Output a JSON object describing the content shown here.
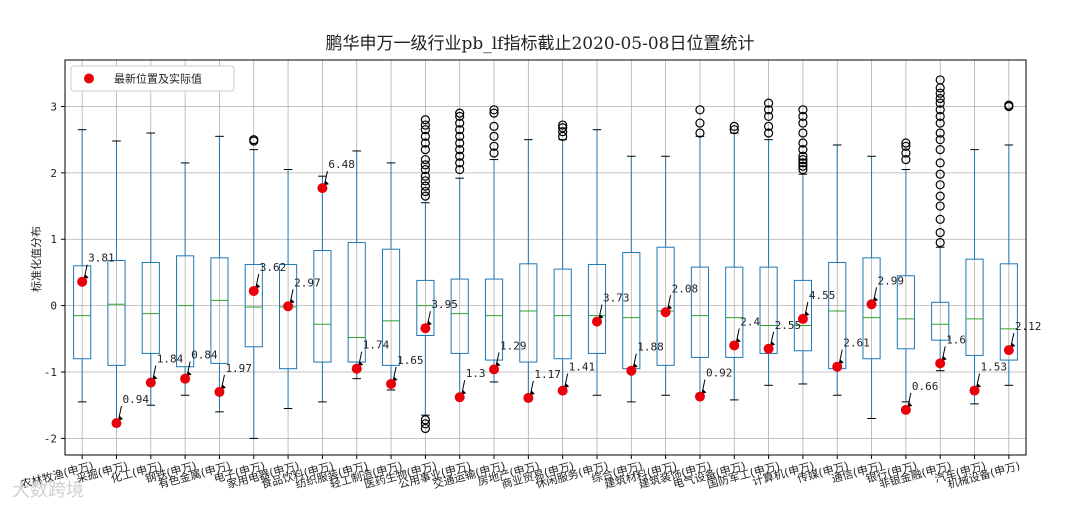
{
  "chart_data": {
    "type": "box",
    "title": "鹏华申万一级行业pb_lf指标截止2020-05-08日位置统计",
    "xlabel": "",
    "ylabel": "标准化值分布",
    "ylim": [
      -2.25,
      3.7
    ],
    "yticks": [
      -2,
      -1,
      0,
      1,
      2,
      3
    ],
    "grid": true,
    "legend": {
      "label": "最新位置及实际值",
      "placement": "top-left",
      "marker_color": "#e8000b"
    },
    "colors": {
      "box": "#1f77b4",
      "median": "#2ca02c",
      "latest": "#e8000b",
      "grid": "#b0b0b0"
    },
    "categories": [
      "农林牧渔(申万)",
      "采掘(申万)",
      "化工(申万)",
      "钢铁(申万)",
      "有色金属(申万)",
      "电子(申万)",
      "家用电器(申万)",
      "食品饮料(申万)",
      "纺织服装(申万)",
      "轻工制造(申万)",
      "医药生物(申万)",
      "公用事业(申万)",
      "交通运输(申万)",
      "房地产(申万)",
      "商业贸易(申万)",
      "休闲服务(申万)",
      "综合(申万)",
      "建筑材料(申万)",
      "建筑装饰(申万)",
      "电气设备(申万)",
      "国防军工(申万)",
      "计算机(申万)",
      "传媒(申万)",
      "通信(申万)",
      "银行(申万)",
      "非银金融(申万)",
      "汽车(申万)",
      "机械设备(申万)"
    ],
    "boxes": [
      {
        "low": -1.45,
        "q1": -0.8,
        "median": -0.15,
        "q3": 0.6,
        "high": 2.65,
        "outliers": []
      },
      {
        "low": -1.75,
        "q1": -0.9,
        "median": 0.02,
        "q3": 0.68,
        "high": 2.48,
        "outliers": []
      },
      {
        "low": -1.5,
        "q1": -0.72,
        "median": -0.12,
        "q3": 0.65,
        "high": 2.6,
        "outliers": []
      },
      {
        "low": -1.35,
        "q1": -0.92,
        "median": 0.0,
        "q3": 0.75,
        "high": 2.15,
        "outliers": []
      },
      {
        "low": -1.6,
        "q1": -0.87,
        "median": 0.08,
        "q3": 0.72,
        "high": 2.55,
        "outliers": []
      },
      {
        "low": -2.0,
        "q1": -0.62,
        "median": -0.02,
        "q3": 0.62,
        "high": 2.35,
        "outliers": [
          2.5,
          2.48
        ]
      },
      {
        "low": -1.55,
        "q1": -0.95,
        "median": -0.02,
        "q3": 0.62,
        "high": 2.05,
        "outliers": []
      },
      {
        "low": -1.45,
        "q1": -0.85,
        "median": -0.28,
        "q3": 0.83,
        "high": 1.95,
        "outliers": []
      },
      {
        "low": -1.1,
        "q1": -0.85,
        "median": -0.48,
        "q3": 0.95,
        "high": 2.33,
        "outliers": []
      },
      {
        "low": -1.27,
        "q1": -0.9,
        "median": -0.23,
        "q3": 0.85,
        "high": 2.15,
        "outliers": []
      },
      {
        "low": -1.65,
        "q1": -0.45,
        "median": 0.0,
        "q3": 0.38,
        "high": 1.55,
        "outliers": [
          1.65,
          1.72,
          1.8,
          1.88,
          1.95,
          2.05,
          2.12,
          2.2,
          2.35,
          2.45,
          2.55,
          2.65,
          2.72,
          2.8,
          -1.72,
          -1.78,
          -1.85
        ]
      },
      {
        "low": -1.38,
        "q1": -0.72,
        "median": -0.12,
        "q3": 0.4,
        "high": 1.92,
        "outliers": [
          2.05,
          2.15,
          2.25,
          2.35,
          2.45,
          2.55,
          2.65,
          2.75,
          2.85,
          2.9
        ]
      },
      {
        "low": -1.15,
        "q1": -0.82,
        "median": -0.15,
        "q3": 0.4,
        "high": 2.2,
        "outliers": [
          2.3,
          2.4,
          2.55,
          2.7,
          2.9,
          2.95
        ]
      },
      {
        "low": -1.4,
        "q1": -0.85,
        "median": -0.08,
        "q3": 0.63,
        "high": 2.5,
        "outliers": []
      },
      {
        "low": -1.3,
        "q1": -0.8,
        "median": -0.15,
        "q3": 0.55,
        "high": 2.5,
        "outliers": [
          2.55,
          2.62,
          2.68,
          2.72
        ]
      },
      {
        "low": -1.35,
        "q1": -0.72,
        "median": -0.15,
        "q3": 0.62,
        "high": 2.65,
        "outliers": []
      },
      {
        "low": -1.45,
        "q1": -0.95,
        "median": -0.18,
        "q3": 0.8,
        "high": 2.25,
        "outliers": []
      },
      {
        "low": -1.35,
        "q1": -0.9,
        "median": -0.08,
        "q3": 0.88,
        "high": 2.25,
        "outliers": []
      },
      {
        "low": -1.35,
        "q1": -0.78,
        "median": -0.15,
        "q3": 0.58,
        "high": 2.55,
        "outliers": [
          2.6,
          2.75,
          2.95
        ]
      },
      {
        "low": -1.42,
        "q1": -0.78,
        "median": -0.18,
        "q3": 0.58,
        "high": 2.6,
        "outliers": [
          2.65,
          2.7
        ]
      },
      {
        "low": -1.2,
        "q1": -0.72,
        "median": -0.3,
        "q3": 0.58,
        "high": 2.5,
        "outliers": [
          2.6,
          2.7,
          2.85,
          2.95,
          3.05
        ]
      },
      {
        "low": -1.18,
        "q1": -0.68,
        "median": -0.3,
        "q3": 0.38,
        "high": 1.98,
        "outliers": [
          2.05,
          2.1,
          2.15,
          2.2,
          2.25,
          2.35,
          2.45,
          2.6,
          2.75,
          2.85,
          2.95
        ]
      },
      {
        "low": -1.35,
        "q1": -0.95,
        "median": -0.08,
        "q3": 0.65,
        "high": 2.42,
        "outliers": []
      },
      {
        "low": -1.7,
        "q1": -0.8,
        "median": -0.18,
        "q3": 0.72,
        "high": 2.25,
        "outliers": []
      },
      {
        "low": -1.45,
        "q1": -0.65,
        "median": -0.2,
        "q3": 0.45,
        "high": 2.05,
        "outliers": [
          2.2,
          2.3,
          2.4,
          2.45
        ]
      },
      {
        "low": -0.98,
        "q1": -0.52,
        "median": -0.28,
        "q3": 0.05,
        "high": 0.88,
        "outliers": [
          0.95,
          1.1,
          1.3,
          1.5,
          1.65,
          1.82,
          1.98,
          2.15,
          2.35,
          2.5,
          2.6,
          2.75,
          2.85,
          2.95,
          3.05,
          3.12,
          3.2,
          3.28,
          3.4
        ]
      },
      {
        "low": -1.48,
        "q1": -0.75,
        "median": -0.2,
        "q3": 0.7,
        "high": 2.35,
        "outliers": []
      },
      {
        "low": -1.2,
        "q1": -0.82,
        "median": -0.35,
        "q3": 0.63,
        "high": 2.42,
        "outliers": [
          3.0,
          3.02
        ]
      }
    ],
    "latest": [
      {
        "y": 0.36,
        "label": "3.81"
      },
      {
        "y": -1.77,
        "label": "0.94"
      },
      {
        "y": -1.16,
        "label": "1.84"
      },
      {
        "y": -1.1,
        "label": "0.84"
      },
      {
        "y": -1.3,
        "label": "1.97"
      },
      {
        "y": 0.22,
        "label": "3.62"
      },
      {
        "y": -0.01,
        "label": "2.97"
      },
      {
        "y": 1.77,
        "label": "6.48"
      },
      {
        "y": -0.95,
        "label": "1.74"
      },
      {
        "y": -1.18,
        "label": "1.65"
      },
      {
        "y": -0.34,
        "label": "3.95"
      },
      {
        "y": -1.38,
        "label": "1.3"
      },
      {
        "y": -0.96,
        "label": "1.29"
      },
      {
        "y": -1.39,
        "label": "1.17"
      },
      {
        "y": -1.28,
        "label": "1.41"
      },
      {
        "y": -0.24,
        "label": "3.73"
      },
      {
        "y": -0.98,
        "label": "1.88"
      },
      {
        "y": -0.1,
        "label": "2.08"
      },
      {
        "y": -1.37,
        "label": "0.92"
      },
      {
        "y": -0.6,
        "label": "2.4"
      },
      {
        "y": -0.65,
        "label": "2.55"
      },
      {
        "y": -0.2,
        "label": "4.55"
      },
      {
        "y": -0.92,
        "label": "2.61"
      },
      {
        "y": 0.02,
        "label": "2.99"
      },
      {
        "y": -1.57,
        "label": "0.66"
      },
      {
        "y": -0.87,
        "label": "1.6"
      },
      {
        "y": -1.28,
        "label": "1.53"
      },
      {
        "y": -0.67,
        "label": "2.12"
      }
    ]
  },
  "watermark": "大数跨境"
}
